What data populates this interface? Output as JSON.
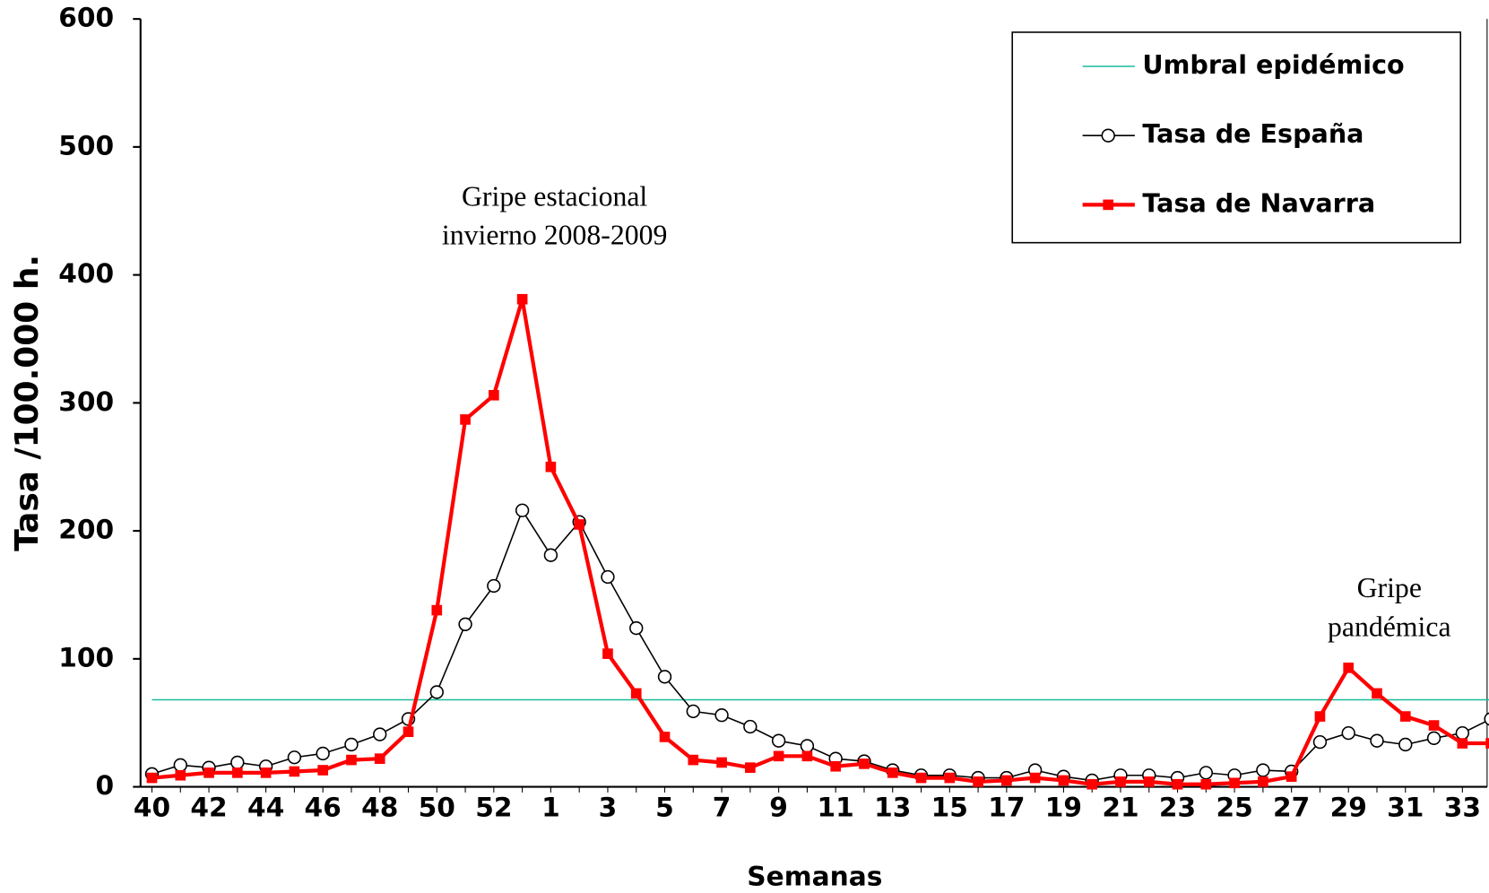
{
  "chart_data": {
    "type": "line",
    "xlabel": "Semanas",
    "ylabel": "Tasa /100.000 h.",
    "categories": [
      40,
      null,
      42,
      null,
      44,
      null,
      46,
      null,
      48,
      null,
      50,
      null,
      52,
      null,
      1,
      null,
      3,
      null,
      5,
      null,
      7,
      null,
      9,
      null,
      11,
      null,
      13,
      null,
      15,
      null,
      17,
      null,
      19,
      null,
      21,
      null,
      23,
      null,
      25,
      null,
      27,
      null,
      29,
      null,
      31,
      null,
      33,
      null
    ],
    "ylim": [
      0,
      600
    ],
    "yticks": [
      0,
      100,
      200,
      300,
      400,
      500,
      600
    ],
    "legend": "upper right",
    "series": [
      {
        "name": "Umbral epidémico",
        "color": "#1abc9c",
        "marker": "none",
        "values": [
          68,
          68,
          68,
          68,
          68,
          68,
          68,
          68,
          68,
          68,
          68,
          68,
          68,
          68,
          68,
          68,
          68,
          68,
          68,
          68,
          68,
          68,
          68,
          68,
          68,
          68,
          68,
          68,
          68,
          68,
          68,
          68,
          68,
          68,
          68,
          68,
          68,
          68,
          68,
          68,
          68,
          68,
          68,
          68,
          68,
          68,
          68,
          68
        ]
      },
      {
        "name": "Tasa de España",
        "color": "#000000",
        "marker": "circle",
        "values": [
          10,
          17,
          15,
          19,
          16,
          23,
          26,
          33,
          41,
          53,
          74,
          127,
          157,
          216,
          181,
          207,
          164,
          124,
          86,
          59,
          56,
          47,
          36,
          32,
          22,
          20,
          13,
          9,
          9,
          7,
          7,
          13,
          8,
          5,
          9,
          9,
          7,
          11,
          9,
          13,
          12,
          35,
          42,
          36,
          33,
          38,
          42,
          53
        ]
      },
      {
        "name": "Tasa de Navarra",
        "color": "#ff0000",
        "marker": "square",
        "values": [
          7,
          9,
          11,
          11,
          11,
          12,
          13,
          21,
          22,
          43,
          138,
          287,
          306,
          381,
          250,
          205,
          104,
          73,
          39,
          21,
          19,
          15,
          24,
          24,
          16,
          18,
          11,
          7,
          7,
          4,
          5,
          7,
          5,
          2,
          4,
          4,
          2,
          2,
          3,
          4,
          8,
          55,
          93,
          73,
          55,
          48,
          34,
          34
        ]
      }
    ],
    "annotations": [
      {
        "lines": [
          "Gripe estacional",
          "invierno 2008-2009"
        ]
      },
      {
        "lines": [
          "Gripe",
          "pandémica"
        ]
      }
    ]
  }
}
